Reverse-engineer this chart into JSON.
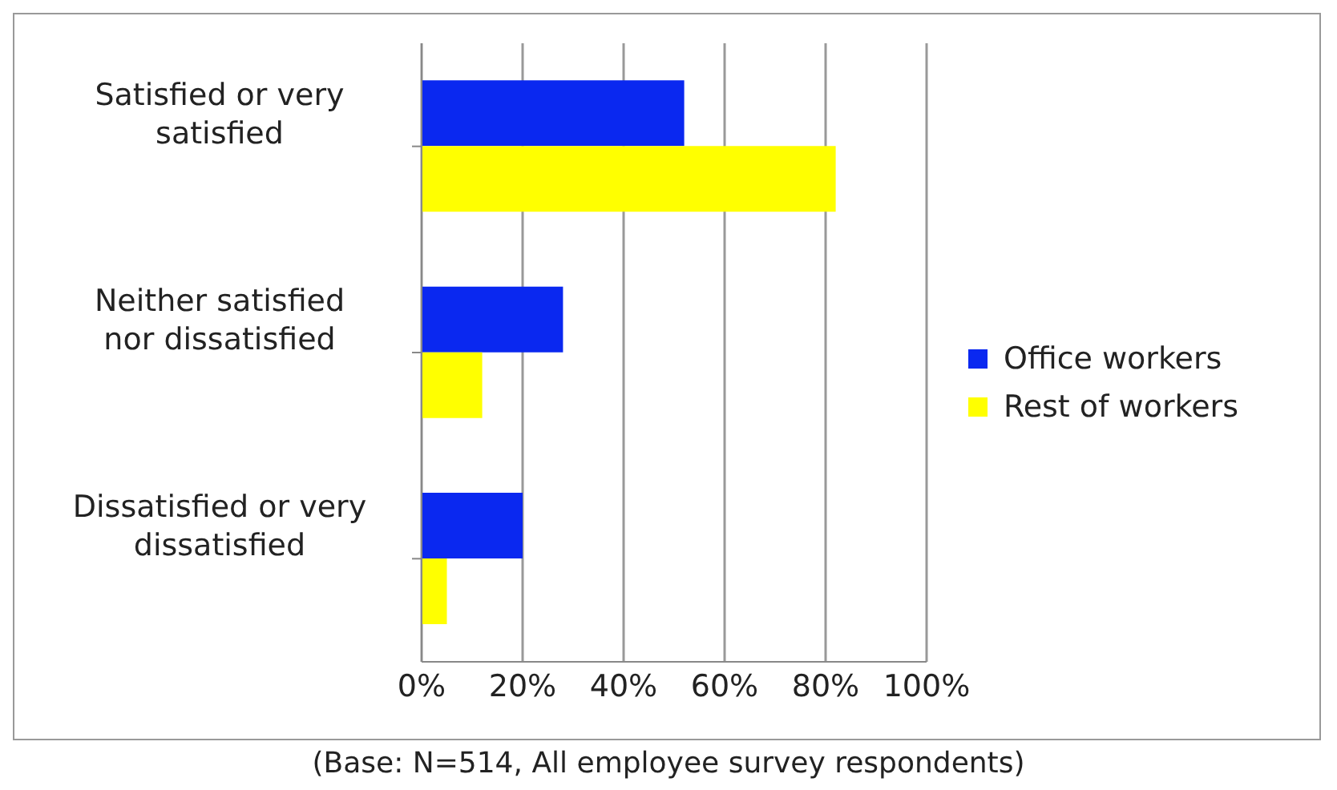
{
  "chart_data": {
    "type": "bar",
    "orientation": "horizontal",
    "categories": [
      "Satisfied or very satisfied",
      "Neither satisfied nor dissatisfied",
      "Dissatisfied or very dissatisfied"
    ],
    "series": [
      {
        "name": "Office workers",
        "color": "#0a28f0",
        "values": [
          52,
          28,
          20
        ]
      },
      {
        "name": "Rest of workers",
        "color": "#ffff00",
        "values": [
          82,
          12,
          5
        ]
      }
    ],
    "xlim": [
      0,
      100
    ],
    "xticks": [
      {
        "value": 0,
        "label": "0%"
      },
      {
        "value": 20,
        "label": "20%"
      },
      {
        "value": 40,
        "label": "40%"
      },
      {
        "value": 60,
        "label": "60%"
      },
      {
        "value": 80,
        "label": "80%"
      },
      {
        "value": 100,
        "label": "100%"
      }
    ],
    "grid": "x",
    "legend": "right",
    "annotations": [
      "(Base: N=514, All employee survey respondents)"
    ]
  }
}
